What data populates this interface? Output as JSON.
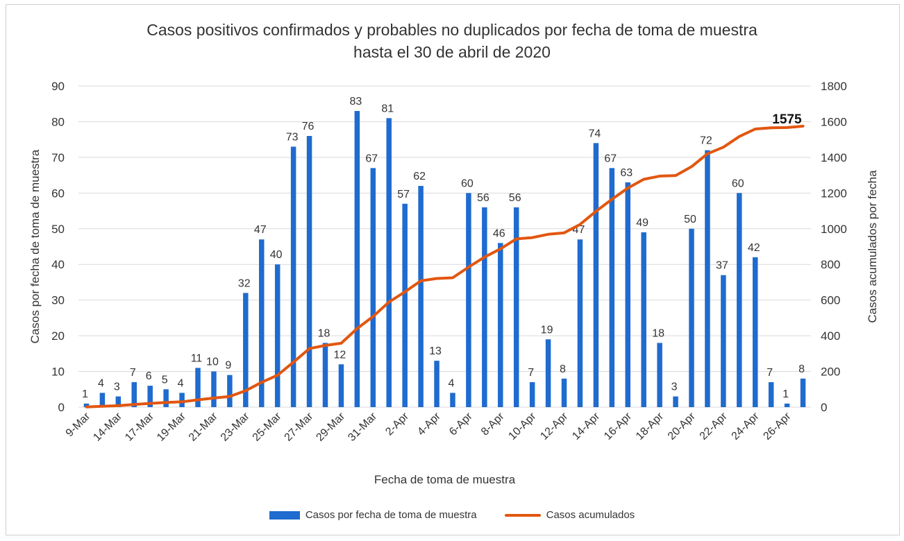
{
  "chart_data": {
    "type": "bar",
    "title_line1": "Casos positivos confirmados y probables no duplicados por fecha de toma de muestra",
    "title_line2": "hasta el 30 de abril de 2020",
    "xlabel": "Fecha de toma de muestra",
    "ylabel_left": "Casos por fecha de toma de muestra",
    "ylabel_right": "Casos acumulados por fecha",
    "ylim_left": [
      0,
      90
    ],
    "yticks_left": [
      0,
      10,
      20,
      30,
      40,
      50,
      60,
      70,
      80,
      90
    ],
    "ylim_right": [
      0,
      1800
    ],
    "yticks_right": [
      0,
      200,
      400,
      600,
      800,
      1000,
      1200,
      1400,
      1600,
      1800
    ],
    "grid": true,
    "legend_position": "bottom",
    "bar_color": "#1f6bcf",
    "line_color": "#e2560f",
    "xtick_labels": [
      "9-Mar",
      "14-Mar",
      "17-Mar",
      "19-Mar",
      "21-Mar",
      "23-Mar",
      "25-Mar",
      "27-Mar",
      "29-Mar",
      "31-Mar",
      "2-Apr",
      "4-Apr",
      "6-Apr",
      "8-Apr",
      "10-Apr",
      "12-Apr",
      "14-Apr",
      "16-Apr",
      "18-Apr",
      "20-Apr",
      "22-Apr",
      "24-Apr",
      "26-Apr"
    ],
    "series": [
      {
        "name": "Casos por fecha de toma de muestra",
        "type": "bar",
        "values": [
          1,
          4,
          3,
          7,
          6,
          5,
          4,
          11,
          10,
          9,
          32,
          47,
          40,
          73,
          76,
          18,
          12,
          83,
          67,
          81,
          57,
          62,
          13,
          4,
          60,
          56,
          46,
          56,
          7,
          19,
          8,
          47,
          74,
          67,
          63,
          49,
          18,
          3,
          50,
          72,
          37,
          60,
          42,
          7,
          1,
          8
        ]
      },
      {
        "name": "Casos acumulados",
        "type": "line",
        "values": [
          1,
          5,
          8,
          15,
          21,
          26,
          30,
          41,
          51,
          60,
          92,
          139,
          179,
          252,
          328,
          346,
          358,
          441,
          508,
          589,
          646,
          708,
          721,
          725,
          785,
          841,
          887,
          943,
          950,
          969,
          977,
          1024,
          1098,
          1165,
          1228,
          1277,
          1295,
          1298,
          1348,
          1420,
          1457,
          1517,
          1559,
          1566,
          1567,
          1575
        ]
      }
    ],
    "annotations": [
      {
        "text": "1575",
        "series": "Casos acumulados",
        "index": 45
      }
    ]
  }
}
